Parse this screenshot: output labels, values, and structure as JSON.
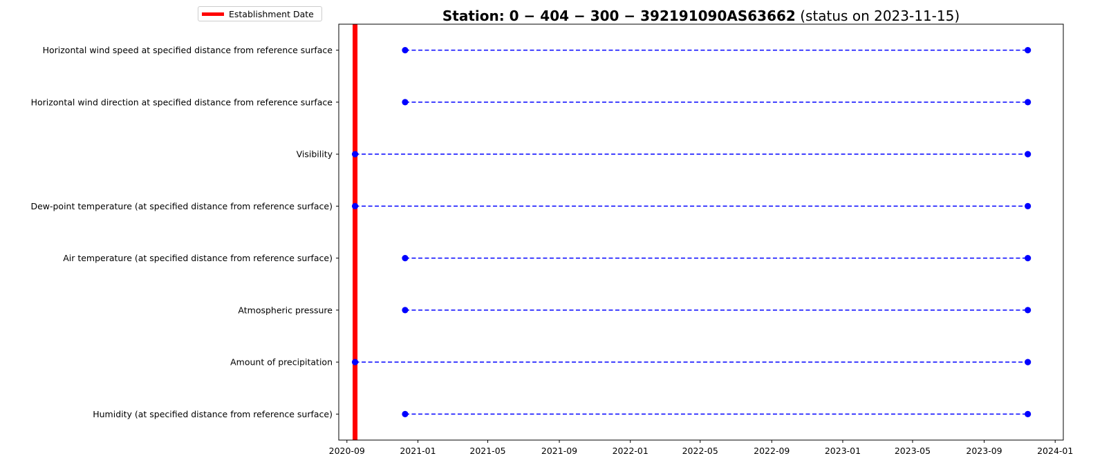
{
  "chart_data": {
    "type": "timeline",
    "title_bold": "Station: 0 − 404 − 300 − 392191090AS63662",
    "title_suffix": " (status on 2023-11-15)",
    "xlabel": "",
    "ylabel": "",
    "x_ticks": [
      "2020-09",
      "2021-01",
      "2021-05",
      "2021-09",
      "2022-01",
      "2022-05",
      "2022-09",
      "2023-01",
      "2023-05",
      "2023-09",
      "2024-01"
    ],
    "xlim": [
      "2020-08-18",
      "2024-01-15"
    ],
    "establishment_date": "2020-09-15",
    "legend": {
      "label": "Establishment Date",
      "color": "#ff0000",
      "placement": "upper-left"
    },
    "line_color": "#0000ff",
    "line_style": "dashed",
    "series": [
      {
        "label": "Horizontal wind speed at specified distance from reference surface",
        "start": "2020-12-10",
        "end": "2023-11-15"
      },
      {
        "label": "Horizontal wind direction at specified distance from reference surface",
        "start": "2020-12-10",
        "end": "2023-11-15"
      },
      {
        "label": "Visibility",
        "start": "2020-09-15",
        "end": "2023-11-15"
      },
      {
        "label": "Dew-point temperature (at specified distance from reference surface)",
        "start": "2020-09-15",
        "end": "2023-11-15"
      },
      {
        "label": "Air temperature (at specified distance from reference surface)",
        "start": "2020-12-10",
        "end": "2023-11-15"
      },
      {
        "label": "Atmospheric pressure",
        "start": "2020-12-10",
        "end": "2023-11-15"
      },
      {
        "label": "Amount of precipitation",
        "start": "2020-09-15",
        "end": "2023-11-15"
      },
      {
        "label": "Humidity  (at specified distance from reference surface)",
        "start": "2020-12-10",
        "end": "2023-11-15"
      }
    ]
  }
}
